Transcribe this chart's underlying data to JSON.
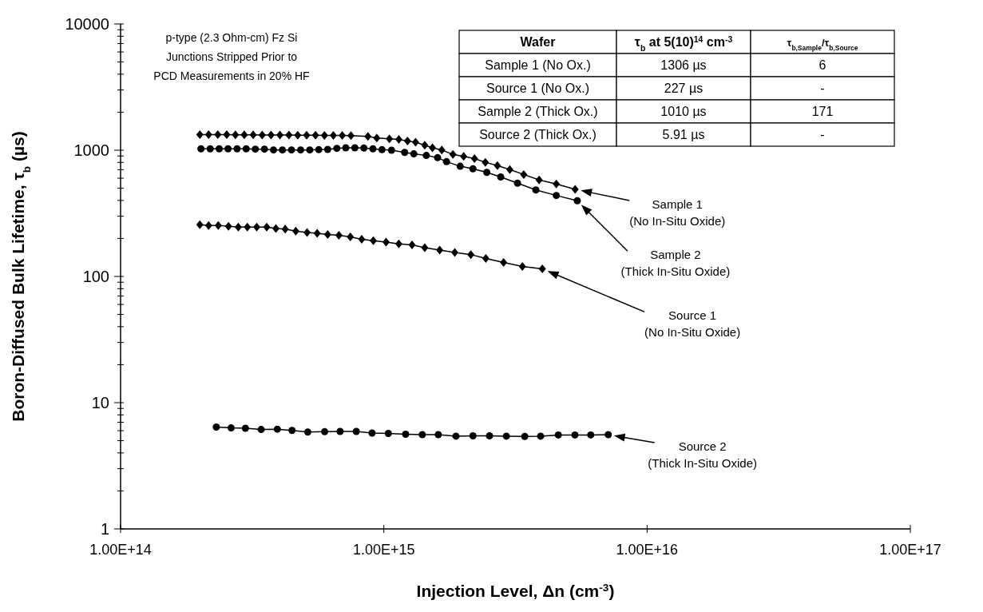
{
  "chart_data": {
    "type": "line",
    "xlabel": "Injection Level, Δn (cm$^{-3}$)",
    "ylabel": "Boron-Diffused Bulk Lifetime, τ$_{b}$ (µs)",
    "log": "xy",
    "grid": false,
    "legend": "right",
    "xlim": [
      100000000000000.0,
      1e+17
    ],
    "xticks": [
      {
        "value": 100000000000000.0,
        "label": "1.00E+14"
      },
      {
        "value": 1000000000000000.0,
        "label": "1.00E+15"
      },
      {
        "value": 1e+16,
        "label": "1.00E+16"
      },
      {
        "value": 1e+17,
        "label": "1.00E+17"
      }
    ],
    "ylim": [
      1,
      10000
    ],
    "yticks": [
      1,
      {
        "value": 2,
        "label": null
      },
      {
        "value": 3,
        "label": null
      },
      {
        "value": 4,
        "label": null
      },
      {
        "value": 5,
        "label": null
      },
      {
        "value": 6,
        "label": null
      },
      {
        "value": 7,
        "label": null
      },
      {
        "value": 8,
        "label": null
      },
      {
        "value": 9,
        "label": null
      },
      10,
      {
        "value": 20,
        "label": null
      },
      {
        "value": 30,
        "label": null
      },
      {
        "value": 40,
        "label": null
      },
      {
        "value": 50,
        "label": null
      },
      {
        "value": 60,
        "label": null
      },
      {
        "value": 70,
        "label": null
      },
      {
        "value": 80,
        "label": null
      },
      {
        "value": 90,
        "label": null
      },
      100,
      {
        "value": 200,
        "label": null
      },
      {
        "value": 300,
        "label": null
      },
      {
        "value": 400,
        "label": null
      },
      {
        "value": 500,
        "label": null
      },
      {
        "value": 600,
        "label": null
      },
      {
        "value": 700,
        "label": null
      },
      {
        "value": 800,
        "label": null
      },
      {
        "value": 900,
        "label": null
      },
      1000,
      {
        "value": 2000,
        "label": null
      },
      {
        "value": 3000,
        "label": null
      },
      {
        "value": 4000,
        "label": null
      },
      {
        "value": 5000,
        "label": null
      },
      {
        "value": 6000,
        "label": null
      },
      {
        "value": 7000,
        "label": null
      },
      {
        "value": 8000,
        "label": null
      },
      {
        "value": 9000,
        "label": null
      },
      10000
    ],
    "series": [
      {
        "name": "Sample 1 (No In-Situ Oxide)",
        "color": "#000000",
        "marker": "diamond",
        "x": [
          200000000000000.0,
          216000000000000.0,
          234000000000000.0,
          253000000000000.0,
          273000000000000.0,
          295000000000000.0,
          319000000000000.0,
          345000000000000.0,
          373000000000000.0,
          403000000000000.0,
          436000000000000.0,
          471000000000000.0,
          509000000000000.0,
          550000000000000.0,
          595000000000000.0,
          643000000000000.0,
          695000000000000.0,
          750000000000000.0,
          870000000000000.0,
          940000000000000.0,
          1050000000000000.0,
          1140000000000000.0,
          1230000000000000.0,
          1320000000000000.0,
          1430000000000000.0,
          1530000000000000.0,
          1660000000000000.0,
          1830000000000000.0,
          2010000000000000.0,
          2210000000000000.0,
          2430000000000000.0,
          2700000000000000.0,
          3010000000000000.0,
          3400000000000000.0,
          3890000000000000.0,
          4520000000000000.0,
          5330000000000000.0
        ],
        "values": [
          1330,
          1330,
          1330,
          1330,
          1325,
          1325,
          1325,
          1320,
          1320,
          1320,
          1320,
          1315,
          1315,
          1315,
          1310,
          1310,
          1310,
          1305,
          1285,
          1250,
          1230,
          1217,
          1183,
          1156,
          1095,
          1045,
          1005,
          925,
          892,
          859,
          802,
          755,
          702,
          642,
          581,
          540,
          490
        ]
      },
      {
        "name": "Sample 2 (Thick In-Situ Oxide)",
        "color": "#000000",
        "marker": "circle",
        "x": [
          202000000000000.0,
          219000000000000.0,
          237000000000000.0,
          256000000000000.0,
          277000000000000.0,
          300000000000000.0,
          325000000000000.0,
          352000000000000.0,
          381000000000000.0,
          412000000000000.0,
          446000000000000.0,
          483000000000000.0,
          523000000000000.0,
          566000000000000.0,
          612000000000000.0,
          663000000000000.0,
          717000000000000.0,
          776000000000000.0,
          840000000000000.0,
          909000000000000.0,
          984000000000000.0,
          1070000000000000.0,
          1200000000000000.0,
          1300000000000000.0,
          1450000000000000.0,
          1600000000000000.0,
          1730000000000000.0,
          1950000000000000.0,
          2180000000000000.0,
          2460000000000000.0,
          2780000000000000.0,
          3220000000000000.0,
          3780000000000000.0,
          4520000000000000.0,
          5430000000000000.0
        ],
        "values": [
          1026,
          1026,
          1026,
          1026,
          1026,
          1026,
          1020,
          1020,
          1005,
          1005,
          1005,
          1005,
          1005,
          1010,
          1015,
          1035,
          1045,
          1045,
          1040,
          1026,
          1010,
          1000,
          960,
          935,
          908,
          873,
          811,
          746,
          713,
          667,
          614,
          548,
          484,
          438,
          398
        ]
      },
      {
        "name": "Source 1 (No In-Situ Oxide)",
        "color": "#000000",
        "marker": "diamond",
        "x": [
          200000000000000.0,
          216000000000000.0,
          235000000000000.0,
          257000000000000.0,
          280000000000000.0,
          303000000000000.0,
          329000000000000.0,
          359000000000000.0,
          389000000000000.0,
          422000000000000.0,
          463000000000000.0,
          511000000000000.0,
          558000000000000.0,
          612000000000000.0,
          675000000000000.0,
          746000000000000.0,
          824000000000000.0,
          912000000000000.0,
          1020000000000000.0,
          1140000000000000.0,
          1280000000000000.0,
          1430000000000000.0,
          1630000000000000.0,
          1860000000000000.0,
          2140000000000000.0,
          2440000000000000.0,
          2850000000000000.0,
          3360000000000000.0,
          4000000000000000.0
        ],
        "values": [
          257,
          253,
          253,
          250,
          246,
          246,
          246,
          246,
          240,
          237,
          229,
          223,
          220,
          215,
          212,
          206,
          197,
          192,
          187,
          181,
          178,
          169,
          162,
          155,
          149,
          139,
          129,
          120,
          115
        ]
      },
      {
        "name": "Source 2 (Thick In-Situ Oxide)",
        "color": "#000000",
        "marker": "circle",
        "x": [
          231000000000000.0,
          263000000000000.0,
          298000000000000.0,
          342000000000000.0,
          394000000000000.0,
          448000000000000.0,
          514000000000000.0,
          596000000000000.0,
          682000000000000.0,
          786000000000000.0,
          902000000000000.0,
          1040000000000000.0,
          1210000000000000.0,
          1400000000000000.0,
          1610000000000000.0,
          1880000000000000.0,
          2180000000000000.0,
          2520000000000000.0,
          2920000000000000.0,
          3430000000000000.0,
          3940000000000000.0,
          4600000000000000.0,
          5320000000000000.0,
          6110000000000000.0,
          7120000000000000.0
        ],
        "values": [
          6.41,
          6.31,
          6.27,
          6.13,
          6.17,
          6.03,
          5.85,
          5.89,
          5.92,
          5.92,
          5.75,
          5.71,
          5.62,
          5.58,
          5.58,
          5.43,
          5.46,
          5.46,
          5.43,
          5.4,
          5.43,
          5.55,
          5.55,
          5.55,
          5.58
        ]
      }
    ],
    "annotations": [
      "p-type (2.3 Ohm-cm) Fz Si\nJunctions Stripped Prior to\nPCD Measurements in 20% HF",
      "Wafer",
      "τ$_{b}$ at 5(10)$^{14}$ cm$^{-3}$",
      "τ$_{b,Sample}$/τ$_{b,Source}$",
      "Sample 1 (No Ox.)",
      "1306 µs",
      "6",
      "Source 1 (No Ox.)",
      "227 µs",
      "-",
      "Sample 2 (Thick Ox.)",
      "1010 µs",
      "171",
      "Source 2 (Thick Ox.)",
      "5.91 µs",
      "-"
    ]
  }
}
